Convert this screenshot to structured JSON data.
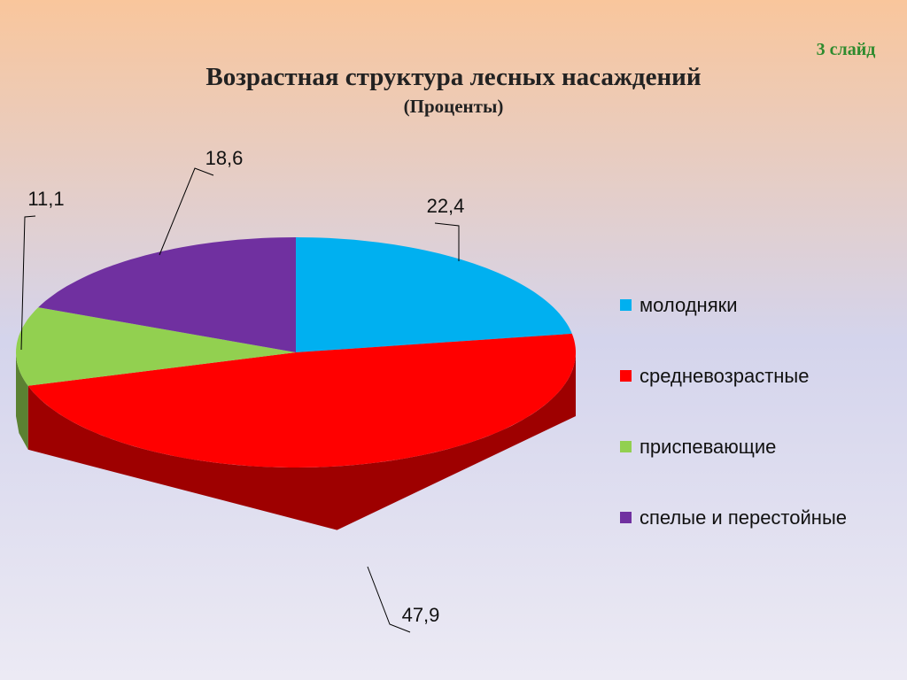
{
  "slide_label": "3 слайд",
  "chart_data": {
    "type": "pie3d",
    "title": "Возрастная структура лесных насаждений",
    "subtitle": "(Проценты)",
    "categories": [
      "молодняки",
      "средневозрастные",
      "приспевающие",
      "спелые и перестойные"
    ],
    "values": [
      22.4,
      47.9,
      11.1,
      18.6
    ],
    "value_labels": [
      "22,4",
      "47,9",
      "11,1",
      "18,6"
    ],
    "colors": [
      "#00b0f0",
      "#ff0000",
      "#92d050",
      "#7030a0"
    ],
    "legend": "right"
  }
}
